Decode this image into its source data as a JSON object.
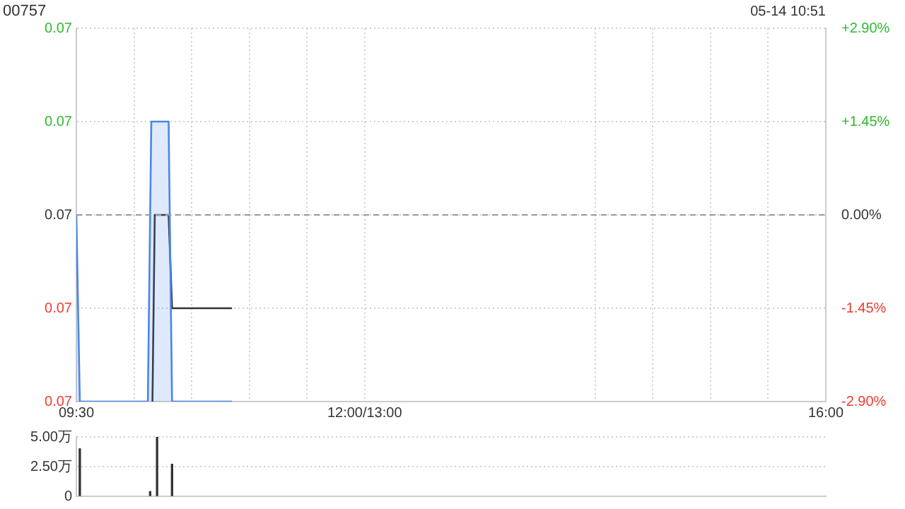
{
  "chart_data": [
    {
      "type": "line",
      "title": "00757",
      "annotations": [
        "05-14 10:51"
      ],
      "xlim": [
        9.5,
        16
      ],
      "xticks": [
        {
          "value": 9.5,
          "label": "09:30"
        },
        {
          "value": 10,
          "label": null
        },
        {
          "value": 10.5,
          "label": null
        },
        {
          "value": 11,
          "label": null
        },
        {
          "value": 11.5,
          "label": null
        },
        {
          "value": 12,
          "label": "12:00/13:00"
        },
        {
          "value": 14,
          "label": null
        },
        {
          "value": 14.5,
          "label": null
        },
        {
          "value": 15,
          "label": null
        },
        {
          "value": 15.5,
          "label": null
        },
        {
          "value": 16,
          "label": "16:00"
        }
      ],
      "ylim": [
        0.067,
        0.071
      ],
      "yticks": [
        {
          "value": 0.067,
          "label": "0.07"
        },
        {
          "value": 0.068,
          "label": "0.07"
        },
        {
          "value": 0.069,
          "label": "0.07"
        },
        {
          "value": 0.07,
          "label": "0.07"
        },
        {
          "value": 0.071,
          "label": "0.07"
        }
      ],
      "y2lim": [
        -2.9,
        2.9
      ],
      "y2ticks": [
        {
          "value": -2.9,
          "label": "-2.90%"
        },
        {
          "value": -1.45,
          "label": "-1.45%"
        },
        {
          "value": 0,
          "label": "0.00%"
        },
        {
          "value": 1.45,
          "label": "+1.45%"
        },
        {
          "value": 2.9,
          "label": "+2.90%"
        }
      ],
      "ref_lines": [
        {
          "axis": "y",
          "value": 0.069,
          "color": "#999999",
          "line_style": "dashed"
        }
      ],
      "grid": true,
      "legend": false,
      "marker": "none",
      "series": [
        {
          "type": "area",
          "color": "#4a86e8",
          "x": [
            9.5,
            9.53,
            10.12,
            10.15,
            10.3,
            10.33,
            10.85
          ],
          "values": [
            0.069,
            0.067,
            0.067,
            0.07,
            0.07,
            0.067,
            0.067
          ]
        },
        {
          "type": "line",
          "color": "#333333",
          "x": [
            10.16,
            10.18,
            10.3,
            10.33,
            10.85
          ],
          "values": [
            0.067,
            0.069,
            0.069,
            0.068,
            0.068
          ]
        }
      ]
    },
    {
      "type": "bar",
      "xlim": [
        9.5,
        16
      ],
      "ylim": [
        0,
        5
      ],
      "yticks": [
        0,
        {
          "value": 2.5,
          "label": "2.50万"
        },
        {
          "value": 5,
          "label": "5.00万"
        }
      ],
      "grid": "y",
      "tick_labels": "y",
      "legend": false,
      "color": "#333333",
      "x": [
        9.53,
        10.14,
        10.2,
        10.33
      ],
      "values": [
        4.0,
        0.4,
        5.0,
        2.7
      ]
    }
  ]
}
